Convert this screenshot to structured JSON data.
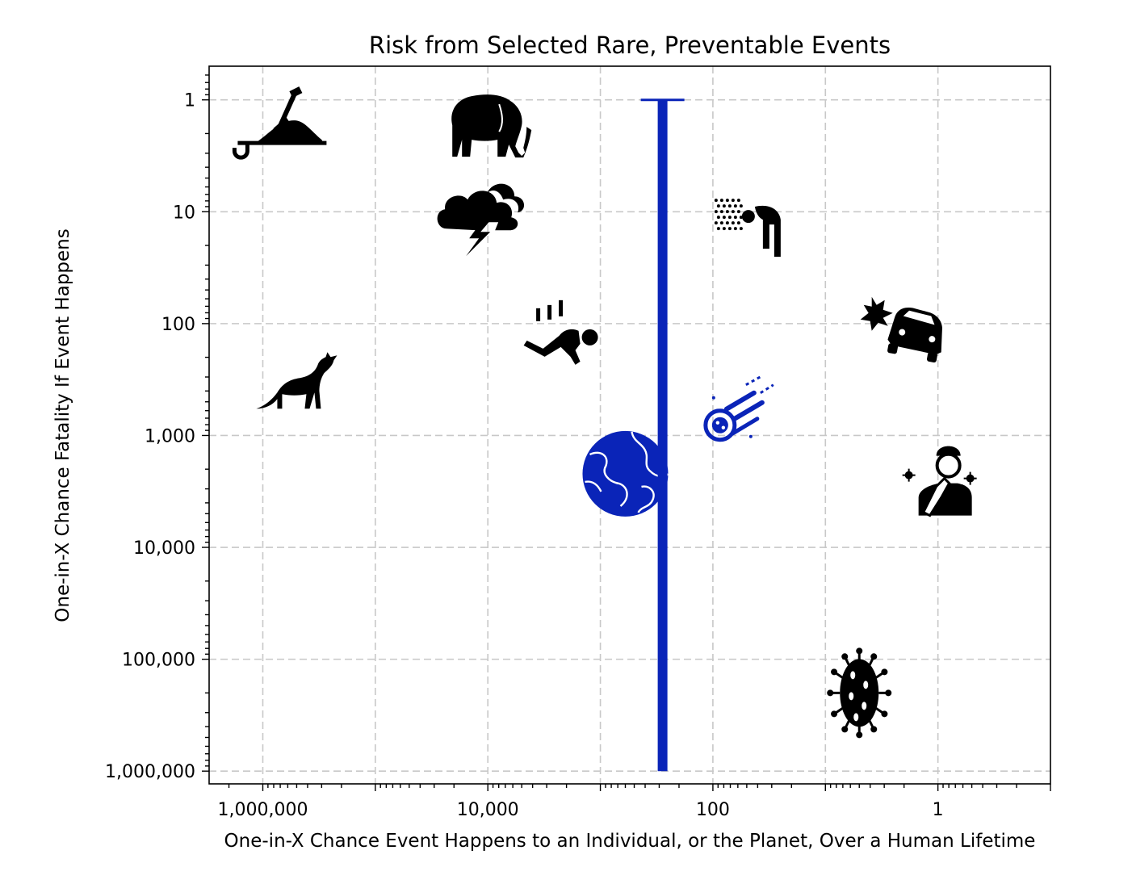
{
  "chart_data": {
    "type": "scatter",
    "title": "Risk from Selected Rare, Preventable Events",
    "xlabel": "One-in-X Chance Event Happens to an Individual, or the Planet, Over a Human Lifetime",
    "ylabel": "One-in-X Chance Fatality If Event Happens",
    "x_scale": "log",
    "y_scale": "log",
    "x_inverted": true,
    "y_inverted": true,
    "xlim": [
      3000000,
      0.1
    ],
    "ylim": [
      0.5,
      1300000
    ],
    "x_tick_values": [
      1000000,
      10000,
      100,
      1
    ],
    "x_tick_labels": [
      "1,000,000",
      "10,000",
      "100",
      "1"
    ],
    "y_tick_values": [
      1,
      10,
      100,
      1000,
      10000,
      100000,
      1000000
    ],
    "y_tick_labels": [
      "1",
      "10",
      "100",
      "1,000",
      "10,000",
      "100,000",
      "1,000,000"
    ],
    "grid": true,
    "points": [
      {
        "icon": "shovel-burial-icon",
        "x": 600000,
        "y": 2.2,
        "color": "#000000"
      },
      {
        "icon": "elephant-icon",
        "x": 10000,
        "y": 1.8,
        "color": "#000000"
      },
      {
        "icon": "lightning-storm-icon",
        "x": 12000,
        "y": 12,
        "color": "#000000"
      },
      {
        "icon": "fox-rabies-icon",
        "x": 500000,
        "y": 350,
        "color": "#000000"
      },
      {
        "icon": "falling-person-icon",
        "x": 2400,
        "y": 120,
        "color": "#000000"
      },
      {
        "icon": "toxic-inhalation-icon",
        "x": 50,
        "y": 13,
        "color": "#000000"
      },
      {
        "icon": "car-crash-icon",
        "x": 2,
        "y": 95,
        "color": "#000000"
      },
      {
        "icon": "sick-person-icon",
        "x": 1,
        "y": 2500,
        "color": "#000000"
      },
      {
        "icon": "virus-icon",
        "x": 5,
        "y": 200000,
        "color": "#000000"
      },
      {
        "icon": "asteroid-icon",
        "x": 60,
        "y": 600,
        "color": "#0a24b8"
      },
      {
        "icon": "earth-icon",
        "x": 600,
        "y": 2200,
        "color": "#0a24b8"
      }
    ],
    "range_bar": {
      "x": 280,
      "y_low": 1,
      "y_high": 1000000,
      "color": "#0a24b8"
    }
  }
}
